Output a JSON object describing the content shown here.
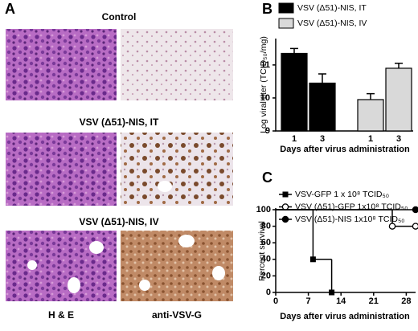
{
  "panel_labels": [
    "A",
    "B",
    "C"
  ],
  "panel_a": {
    "rows": [
      "Control",
      "VSV (Δ51)-NIS, IT",
      "VSV (Δ51)-NIS, IV"
    ],
    "columns": [
      "H & E",
      "anti-VSV-G"
    ]
  },
  "chart_data": [
    {
      "type": "bar",
      "ylabel": "Log viral titer (TCID₅₀/mg)",
      "xlabel": "Days after virus administration",
      "categories": [
        "1",
        "3"
      ],
      "ylim": [
        9,
        11.8
      ],
      "yticks": [
        9,
        10,
        11
      ],
      "series": [
        {
          "name": "VSV (Δ51)-NIS, IT",
          "color": "#000000",
          "values": [
            11.35,
            10.45
          ],
          "errors": [
            0.15,
            0.28
          ]
        },
        {
          "name": "VSV (Δ51)-NIS, IV",
          "color": "#d9d9d9",
          "values": [
            9.95,
            10.9
          ],
          "errors": [
            0.18,
            0.15
          ]
        }
      ]
    },
    {
      "type": "step",
      "ylabel": "Percent survival",
      "xlabel": "Days after virus administration",
      "xlim": [
        0,
        30
      ],
      "xticks": [
        0,
        7,
        14,
        21,
        28
      ],
      "ylim": [
        0,
        100
      ],
      "yticks": [
        0,
        20,
        40,
        60,
        80,
        100
      ],
      "series": [
        {
          "name": "VSV-GFP 1 x 10⁸ TCID₅₀",
          "color": "#000000",
          "marker": "square",
          "x": [
            0,
            8,
            12
          ],
          "values": [
            100,
            40,
            0
          ]
        },
        {
          "name": "VSV (Δ51)-GFP 1x10⁸ TCID₅₀",
          "color": "#000000",
          "marker": "open-circle",
          "x": [
            0,
            25,
            30
          ],
          "values": [
            100,
            80,
            80
          ]
        },
        {
          "name": "VSV (Δ51)-NIS 1x10⁸ TCID₅₀",
          "color": "#000000",
          "marker": "circle",
          "x": [
            0,
            30
          ],
          "values": [
            100,
            100
          ]
        }
      ]
    }
  ]
}
